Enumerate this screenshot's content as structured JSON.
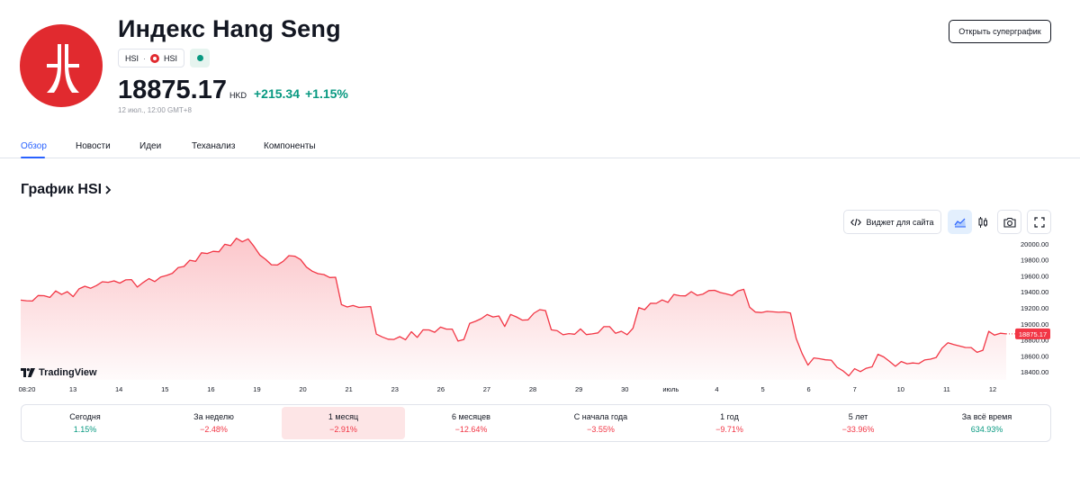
{
  "header": {
    "title": "Индекс Hang Seng",
    "ticker_tag": "HSI",
    "exchange_tag": "HSI",
    "logo_icon": "hang-seng-logo",
    "status": "market-open",
    "price": "18875.17",
    "currency": "HKD",
    "change": "+215.34",
    "change_percent": "+1.15%",
    "timestamp": "12 июл., 12:00 GMT+8",
    "supergraph_button": "Открыть суперграфик"
  },
  "tabs": [
    "Обзор",
    "Новости",
    "Идеи",
    "Теханализ",
    "Компоненты"
  ],
  "active_tab": "Обзор",
  "chart_section": {
    "title": "График HSI",
    "widget_button": "Виджет для сайта",
    "toolbar_icons": [
      "area-chart-icon",
      "candlestick-icon",
      "camera-icon",
      "fullscreen-icon"
    ],
    "watermark": "TradingView"
  },
  "chart_data": {
    "type": "area",
    "title": "",
    "xlabel": "",
    "ylabel": "",
    "ylim": [
      18300,
      20100
    ],
    "y_ticks": [
      "20000.00",
      "19800.00",
      "19600.00",
      "19400.00",
      "19200.00",
      "19000.00",
      "18800.00",
      "18600.00",
      "18400.00"
    ],
    "y_tick_values": [
      20000,
      19800,
      19600,
      19400,
      19200,
      19000,
      18800,
      18600,
      18400
    ],
    "x_ticks": [
      "08:20",
      "13",
      "14",
      "15",
      "16",
      "19",
      "20",
      "21",
      "23",
      "26",
      "27",
      "28",
      "29",
      "30",
      "июль",
      "4",
      "5",
      "6",
      "7",
      "10",
      "11",
      "12"
    ],
    "last_value_label": "18875.17",
    "line_color": "#f23645",
    "values": [
      19297,
      19289,
      19286,
      19354,
      19352,
      19331,
      19411,
      19368,
      19403,
      19341,
      19437,
      19470,
      19445,
      19479,
      19526,
      19519,
      19538,
      19509,
      19550,
      19553,
      19460,
      19517,
      19566,
      19529,
      19586,
      19605,
      19632,
      19703,
      19717,
      19795,
      19782,
      19888,
      19879,
      19906,
      19901,
      19994,
      19977,
      20070,
      20026,
      20062,
      19968,
      19860,
      19806,
      19739,
      19735,
      19782,
      19853,
      19846,
      19804,
      19710,
      19658,
      19628,
      19616,
      19579,
      19583,
      19240,
      19211,
      19229,
      19206,
      19211,
      19217,
      18872,
      18837,
      18808,
      18805,
      18840,
      18802,
      18902,
      18831,
      18926,
      18924,
      18895,
      18959,
      18934,
      18934,
      18785,
      18805,
      19007,
      19032,
      19066,
      19117,
      19086,
      19099,
      18967,
      19118,
      19088,
      19047,
      19050,
      19132,
      19178,
      19166,
      18926,
      18914,
      18864,
      18878,
      18870,
      18937,
      18866,
      18875,
      18887,
      18965,
      18965,
      18883,
      18908,
      18865,
      18945,
      19203,
      19177,
      19257,
      19256,
      19299,
      19269,
      19368,
      19352,
      19350,
      19403,
      19356,
      19372,
      19416,
      19419,
      19391,
      19374,
      19355,
      19412,
      19432,
      19209,
      19147,
      19142,
      19156,
      19151,
      19145,
      19149,
      19135,
      18816,
      18630,
      18485,
      18575,
      18564,
      18551,
      18546,
      18458,
      18414,
      18351,
      18439,
      18404,
      18445,
      18463,
      18620,
      18587,
      18531,
      18470,
      18529,
      18501,
      18511,
      18504,
      18549,
      18559,
      18580,
      18696,
      18763,
      18742,
      18723,
      18705,
      18704,
      18644,
      18670,
      18906,
      18859,
      18883,
      18875
    ]
  },
  "periods": [
    {
      "label": "Сегодня",
      "value": "1.15%",
      "trend": "pos"
    },
    {
      "label": "За неделю",
      "value": "−2.48%",
      "trend": "neg"
    },
    {
      "label": "1 месяц",
      "value": "−2.91%",
      "trend": "neg"
    },
    {
      "label": "6 месяцев",
      "value": "−12.64%",
      "trend": "neg"
    },
    {
      "label": "С начала года",
      "value": "−3.55%",
      "trend": "neg"
    },
    {
      "label": "1 год",
      "value": "−9.71%",
      "trend": "neg"
    },
    {
      "label": "5 лет",
      "value": "−33.96%",
      "trend": "neg"
    },
    {
      "label": "За всё время",
      "value": "634.93%",
      "trend": "pos"
    }
  ],
  "active_period": "1 месяц"
}
